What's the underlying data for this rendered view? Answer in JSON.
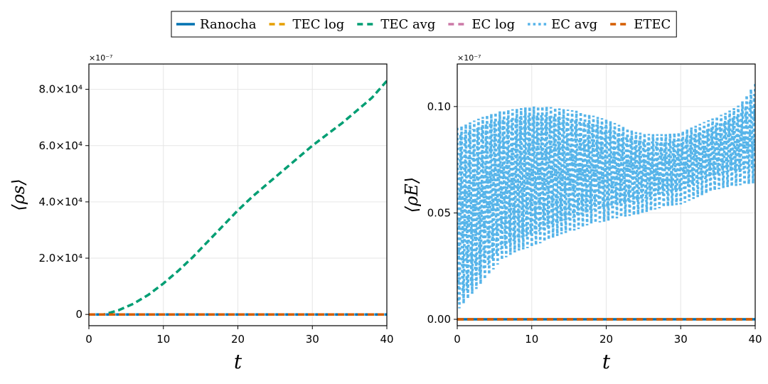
{
  "legend": {
    "entries": [
      {
        "label": "Ranocha",
        "color": "#0072B2",
        "style": "solid"
      },
      {
        "label": "TEC log",
        "color": "#E69F00",
        "style": "dash"
      },
      {
        "label": "TEC avg",
        "color": "#009E73",
        "style": "dash"
      },
      {
        "label": "EC log",
        "color": "#CC79A7",
        "style": "dash"
      },
      {
        "label": "EC avg",
        "color": "#56B4E9",
        "style": "dot"
      },
      {
        "label": "ETEC",
        "color": "#D55E00",
        "style": "dash"
      }
    ]
  },
  "chart_data": [
    {
      "type": "line",
      "title": "",
      "xlabel": "t",
      "ylabel": "⟨ρs⟩",
      "scale_label": "×10⁻⁷",
      "xlim": [
        0,
        40
      ],
      "ylim": [
        -4000,
        89000
      ],
      "xticks": [
        0,
        10,
        20,
        30,
        40
      ],
      "xtick_labels": [
        "0",
        "10",
        "20",
        "30",
        "40"
      ],
      "yticks": [
        0,
        20000,
        40000,
        60000,
        80000
      ],
      "ytick_labels": [
        "0",
        "2.0×10⁴",
        "4.0×10⁴",
        "6.0×10⁴",
        "8.0×10⁴"
      ],
      "grid": true,
      "x": [
        0,
        2,
        4,
        6,
        8,
        10,
        12,
        14,
        16,
        18,
        20,
        22,
        24,
        26,
        28,
        30,
        32,
        34,
        36,
        38,
        40
      ],
      "series": [
        {
          "name": "Ranocha",
          "values": [
            0,
            0,
            0,
            0,
            0,
            0,
            0,
            0,
            0,
            0,
            0,
            0,
            0,
            0,
            0,
            0,
            0,
            0,
            0,
            0,
            0
          ]
        },
        {
          "name": "TEC log",
          "values": [
            0,
            0,
            0,
            0,
            0,
            0,
            0,
            0,
            0,
            0,
            0,
            0,
            0,
            0,
            0,
            0,
            0,
            0,
            0,
            0,
            0
          ]
        },
        {
          "name": "TEC avg",
          "values": [
            0,
            0,
            1500,
            3800,
            7000,
            11000,
            15500,
            20500,
            26000,
            31500,
            37000,
            42000,
            46500,
            51000,
            55500,
            60000,
            64000,
            68000,
            72500,
            77000,
            83000
          ]
        },
        {
          "name": "EC log",
          "values": [
            0,
            0,
            0,
            0,
            0,
            0,
            0,
            0,
            0,
            0,
            0,
            0,
            0,
            0,
            0,
            0,
            0,
            0,
            0,
            0,
            0
          ]
        },
        {
          "name": "EC avg",
          "values": [
            0,
            0,
            0,
            0,
            0,
            0,
            0,
            0,
            0,
            0,
            0,
            0,
            0,
            0,
            0,
            0,
            0,
            0,
            0,
            0,
            0
          ]
        },
        {
          "name": "ETEC",
          "values": [
            0,
            0,
            0,
            0,
            0,
            0,
            0,
            0,
            0,
            0,
            0,
            0,
            0,
            0,
            0,
            0,
            0,
            0,
            0,
            0,
            0
          ]
        }
      ]
    },
    {
      "type": "line",
      "title": "",
      "xlabel": "t",
      "ylabel": "⟨ρE⟩",
      "scale_label": "×10⁻⁷",
      "xlim": [
        0,
        40
      ],
      "ylim": [
        -0.003,
        0.12
      ],
      "xticks": [
        0,
        10,
        20,
        30,
        40
      ],
      "xtick_labels": [
        "0",
        "10",
        "20",
        "30",
        "40"
      ],
      "yticks": [
        0,
        0.05,
        0.1
      ],
      "ytick_labels": [
        "0.00",
        "0.05",
        "0.10"
      ],
      "grid": true,
      "x": [
        0,
        2,
        4,
        6,
        8,
        10,
        12,
        14,
        16,
        18,
        20,
        22,
        24,
        26,
        28,
        30,
        32,
        34,
        36,
        38,
        40
      ],
      "series": [
        {
          "name": "Ranocha",
          "values": [
            0,
            0,
            0,
            0,
            0,
            0,
            0,
            0,
            0,
            0,
            0,
            0,
            0,
            0,
            0,
            0,
            0,
            0,
            0,
            0,
            0
          ]
        },
        {
          "name": "TEC log",
          "values": [
            0,
            0,
            0,
            0,
            0,
            0,
            0,
            0,
            0,
            0,
            0,
            0,
            0,
            0,
            0,
            0,
            0,
            0,
            0,
            0,
            0
          ]
        },
        {
          "name": "TEC avg",
          "values": [
            0,
            0,
            0,
            0,
            0,
            0,
            0,
            0,
            0,
            0,
            0,
            0,
            0,
            0,
            0,
            0,
            0,
            0,
            0,
            0,
            0
          ]
        },
        {
          "name": "EC log",
          "values": [
            0,
            0,
            0,
            0,
            0,
            0,
            0,
            0,
            0,
            0,
            0,
            0,
            0,
            0,
            0,
            0,
            0,
            0,
            0,
            0,
            0
          ]
        },
        {
          "name": "EC avg",
          "lower": [
            0.004,
            0.012,
            0.02,
            0.028,
            0.032,
            0.034,
            0.037,
            0.04,
            0.042,
            0.045,
            0.046,
            0.048,
            0.049,
            0.051,
            0.053,
            0.054,
            0.057,
            0.06,
            0.062,
            0.063,
            0.064
          ],
          "upper": [
            0.09,
            0.093,
            0.096,
            0.098,
            0.099,
            0.1,
            0.1,
            0.099,
            0.098,
            0.096,
            0.094,
            0.091,
            0.088,
            0.087,
            0.087,
            0.088,
            0.091,
            0.094,
            0.097,
            0.101,
            0.111
          ]
        },
        {
          "name": "ETEC",
          "values": [
            0,
            0,
            0,
            0,
            0,
            0,
            0,
            0,
            0,
            0,
            0,
            0,
            0,
            0,
            0,
            0,
            0,
            0,
            0,
            0,
            0
          ]
        }
      ]
    }
  ]
}
